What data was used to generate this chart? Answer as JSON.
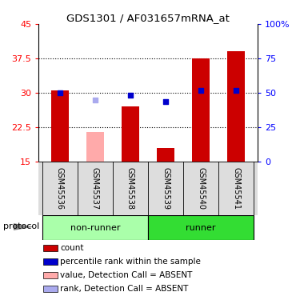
{
  "title": "GDS1301 / AF031657mRNA_at",
  "samples": [
    "GSM45536",
    "GSM45537",
    "GSM45538",
    "GSM45539",
    "GSM45540",
    "GSM45541"
  ],
  "bar_values": [
    30.5,
    21.5,
    27.0,
    18.0,
    37.5,
    39.0
  ],
  "bar_colors": [
    "#cc0000",
    "#ffaaaa",
    "#cc0000",
    "#cc0000",
    "#cc0000",
    "#cc0000"
  ],
  "rank_values": [
    30.0,
    28.5,
    29.5,
    28.0,
    30.5,
    30.5
  ],
  "rank_colors": [
    "#0000cc",
    "#aaaaee",
    "#0000cc",
    "#0000cc",
    "#0000cc",
    "#0000cc"
  ],
  "ylim_left": [
    15,
    45
  ],
  "ylim_right": [
    0,
    100
  ],
  "yticks_left": [
    15,
    22.5,
    30,
    37.5,
    45
  ],
  "yticks_right": [
    0,
    25,
    50,
    75,
    100
  ],
  "ytick_labels_right": [
    "0",
    "25",
    "50",
    "75",
    "100%"
  ],
  "dotted_lines": [
    22.5,
    30.0,
    37.5
  ],
  "groups": [
    {
      "label": "non-runner",
      "samples": [
        0,
        1,
        2
      ],
      "color": "#aaffaa"
    },
    {
      "label": "runner",
      "samples": [
        3,
        4,
        5
      ],
      "color": "#33dd33"
    }
  ],
  "protocol_label": "protocol",
  "legend_items": [
    {
      "color": "#cc0000",
      "label": "count"
    },
    {
      "color": "#0000cc",
      "label": "percentile rank within the sample"
    },
    {
      "color": "#ffaaaa",
      "label": "value, Detection Call = ABSENT"
    },
    {
      "color": "#aaaaee",
      "label": "rank, Detection Call = ABSENT"
    }
  ],
  "bar_width": 0.5,
  "bar_bottom": 15.0
}
